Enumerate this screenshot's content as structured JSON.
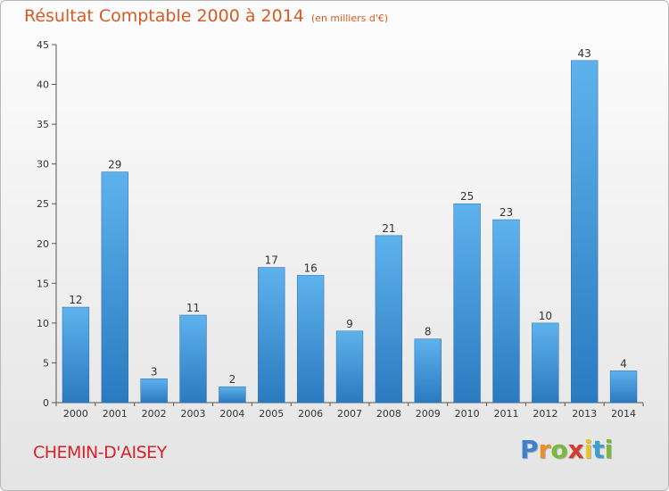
{
  "header": {
    "title": "Résultat Comptable 2000 à 2014",
    "subtitle": "(en milliers d'€)"
  },
  "footer": {
    "place": "CHEMIN-D'AISEY",
    "logo_letters": [
      "P",
      "r",
      "o",
      "x",
      "i",
      "t",
      "i"
    ],
    "logo_colors": [
      "#3d7fd0",
      "#e8912b",
      "#79b83a",
      "#d63b2e",
      "#e8c32b",
      "#3d9fd0",
      "#79b83a"
    ]
  },
  "colors": {
    "bar_light": "#5eb2ec",
    "bar_dark": "#2a7ac0",
    "title": "#d65a25",
    "place": "#d6232b"
  },
  "chart_data": {
    "type": "bar",
    "title": "Résultat Comptable 2000 à 2014",
    "subtitle": "(en milliers d'€)",
    "xlabel": "",
    "ylabel": "",
    "categories": [
      "2000",
      "2001",
      "2002",
      "2003",
      "2004",
      "2005",
      "2006",
      "2007",
      "2008",
      "2009",
      "2010",
      "2011",
      "2012",
      "2013",
      "2014"
    ],
    "values": [
      12,
      29,
      3,
      11,
      2,
      17,
      16,
      9,
      21,
      8,
      25,
      23,
      10,
      43,
      4
    ],
    "ylim": [
      0,
      45
    ],
    "yticks": [
      0,
      5,
      10,
      15,
      20,
      25,
      30,
      35,
      40,
      45
    ],
    "grid": false,
    "data_labels": true
  }
}
